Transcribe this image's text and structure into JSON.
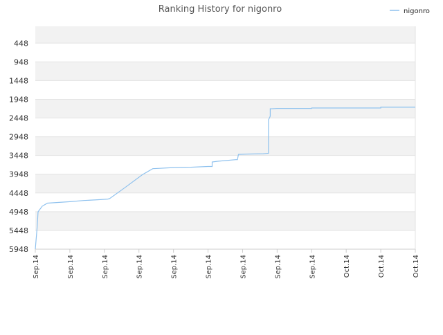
{
  "chart_data": {
    "type": "line",
    "title": "Ranking History for nigonro",
    "xlabel": "",
    "ylabel": "",
    "y_inverted": true,
    "ylim": [
      5948,
      0
    ],
    "yticks": [
      448,
      948,
      1448,
      1948,
      2448,
      2948,
      3448,
      3948,
      4448,
      4948,
      5448,
      5948
    ],
    "xtick_labels": [
      "Sep.14",
      "Sep.14",
      "Sep.14",
      "Sep.14",
      "Sep.14",
      "Sep.14",
      "Sep.14",
      "Sep.14",
      "Sep.14",
      "Oct.14",
      "Oct.14",
      "Oct.14"
    ],
    "grid": true,
    "legend_position": "top-right",
    "series": [
      {
        "name": "nigonro",
        "color": "#8ec1ee",
        "x": [
          0,
          0.05,
          0.08,
          0.2,
          0.35,
          1.0,
          1.4,
          1.8,
          2.1,
          2.15,
          2.6,
          3.1,
          3.4,
          3.6,
          3.8,
          4.0,
          4.5,
          5.0,
          5.12,
          5.12,
          5.3,
          5.8,
          5.85,
          5.88,
          6.1,
          6.6,
          6.75,
          6.75,
          6.8,
          6.8,
          6.85,
          7.0,
          8.0,
          8.0,
          9.0,
          10.0,
          10.0,
          11.0
        ],
        "y": [
          5948,
          5400,
          4950,
          4800,
          4720,
          4680,
          4650,
          4630,
          4610,
          4600,
          4300,
          3960,
          3800,
          3790,
          3780,
          3770,
          3760,
          3740,
          3740,
          3620,
          3600,
          3560,
          3560,
          3420,
          3410,
          3400,
          3390,
          2500,
          2400,
          2200,
          2200,
          2190,
          2190,
          2180,
          2180,
          2180,
          2160,
          2160
        ]
      }
    ]
  },
  "legend": {
    "label": "nigonro",
    "color": "#8ec1ee"
  },
  "colors": {
    "band_shade": "#f2f2f2",
    "grid": "#e3e3e3",
    "tick_text": "#333333",
    "title_text": "#555555"
  }
}
